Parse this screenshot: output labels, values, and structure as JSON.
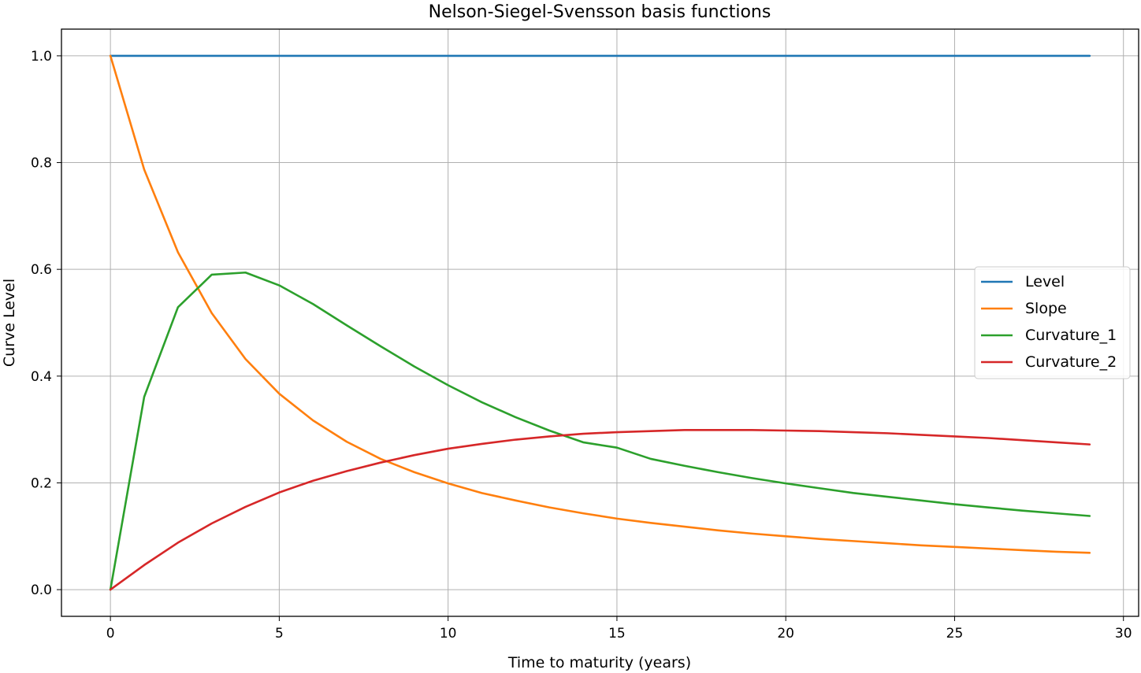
{
  "chart_data": {
    "type": "line",
    "title": "Nelson-Siegel-Svensson basis functions",
    "xlabel": "Time to maturity (years)",
    "ylabel": "Curve Level",
    "xlim": [
      -1.45,
      30.45
    ],
    "ylim": [
      -0.05,
      1.05
    ],
    "xticks": [
      0,
      5,
      10,
      15,
      20,
      25,
      30
    ],
    "yticks": [
      0.0,
      0.2,
      0.4,
      0.6,
      0.8,
      1.0
    ],
    "xtick_labels": [
      "0",
      "5",
      "10",
      "15",
      "20",
      "25",
      "30"
    ],
    "ytick_labels": [
      "0.0",
      "0.2",
      "0.4",
      "0.6",
      "0.8",
      "1.0"
    ],
    "grid": true,
    "legend_position": "center-right",
    "x": [
      0,
      1,
      2,
      3,
      4,
      5,
      6,
      7,
      8,
      9,
      10,
      11,
      12,
      13,
      14,
      15,
      16,
      17,
      18,
      19,
      20,
      21,
      22,
      23,
      24,
      25,
      26,
      27,
      28,
      29
    ],
    "series": [
      {
        "name": "Level",
        "color": "#1f77b4",
        "values": [
          1.0,
          1.0,
          1.0,
          1.0,
          1.0,
          1.0,
          1.0,
          1.0,
          1.0,
          1.0,
          1.0,
          1.0,
          1.0,
          1.0,
          1.0,
          1.0,
          1.0,
          1.0,
          1.0,
          1.0,
          1.0,
          1.0,
          1.0,
          1.0,
          1.0,
          1.0,
          1.0,
          1.0,
          1.0,
          1.0
        ]
      },
      {
        "name": "Slope",
        "color": "#ff7f0e",
        "values": [
          1.0,
          0.787,
          0.632,
          0.518,
          0.432,
          0.367,
          0.317,
          0.277,
          0.245,
          0.22,
          0.199,
          0.181,
          0.167,
          0.154,
          0.143,
          0.133,
          0.125,
          0.118,
          0.111,
          0.105,
          0.1,
          0.095,
          0.091,
          0.087,
          0.083,
          0.08,
          0.077,
          0.074,
          0.071,
          0.069
        ]
      },
      {
        "name": "Curvature_1",
        "color": "#2ca02c",
        "values": [
          0.0,
          0.361,
          0.529,
          0.59,
          0.594,
          0.57,
          0.535,
          0.495,
          0.456,
          0.418,
          0.383,
          0.351,
          0.323,
          0.298,
          0.276,
          0.266,
          0.245,
          0.232,
          0.22,
          0.209,
          0.199,
          0.19,
          0.181,
          0.174,
          0.167,
          0.16,
          0.154,
          0.148,
          0.143,
          0.138
        ]
      },
      {
        "name": "Curvature_2",
        "color": "#d62728",
        "values": [
          0.0,
          0.046,
          0.088,
          0.124,
          0.155,
          0.182,
          0.204,
          0.222,
          0.238,
          0.252,
          0.264,
          0.273,
          0.281,
          0.287,
          0.292,
          0.295,
          0.297,
          0.299,
          0.299,
          0.299,
          0.298,
          0.297,
          0.295,
          0.293,
          0.29,
          0.287,
          0.284,
          0.28,
          0.276,
          0.272
        ]
      }
    ]
  }
}
